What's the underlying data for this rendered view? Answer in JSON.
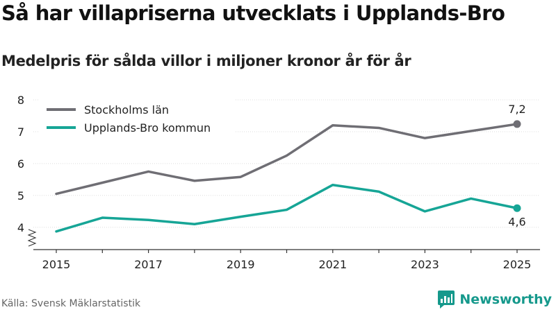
{
  "title": "Så har villapriserna utvecklats i Upplands-Bro",
  "subtitle": "Medelpris för sålda villor i miljoner kronor år för år",
  "source": "Källa: Svensk Mäklarstatistik",
  "brand": "Newsworthy",
  "chart_data": {
    "type": "line",
    "title": "Så har villapriserna utvecklats i Upplands-Bro",
    "subtitle": "Medelpris för sålda villor i miljoner kronor år för år",
    "xlabel": "",
    "ylabel": "",
    "x": [
      2015,
      2016,
      2017,
      2018,
      2019,
      2020,
      2021,
      2022,
      2023,
      2024,
      2025
    ],
    "xticks": [
      "2015",
      "2017",
      "2019",
      "2021",
      "2023",
      "2025"
    ],
    "ylim": [
      3.3,
      8
    ],
    "yticks": [
      "4",
      "5",
      "6",
      "7",
      "8"
    ],
    "grid": true,
    "legend_position": "top-left",
    "axis_break": true,
    "series": [
      {
        "name": "Stockholms län",
        "color": "#6f6e74",
        "values": [
          5.05,
          5.4,
          5.75,
          5.46,
          5.58,
          6.25,
          7.2,
          7.12,
          6.8,
          7.02,
          7.24
        ],
        "end_label": "7,2"
      },
      {
        "name": "Upplands-Bro kommun",
        "color": "#16a596",
        "values": [
          3.87,
          4.3,
          4.23,
          4.1,
          4.33,
          4.55,
          5.33,
          5.12,
          4.5,
          4.9,
          4.6
        ],
        "end_label": "4,6"
      }
    ]
  }
}
